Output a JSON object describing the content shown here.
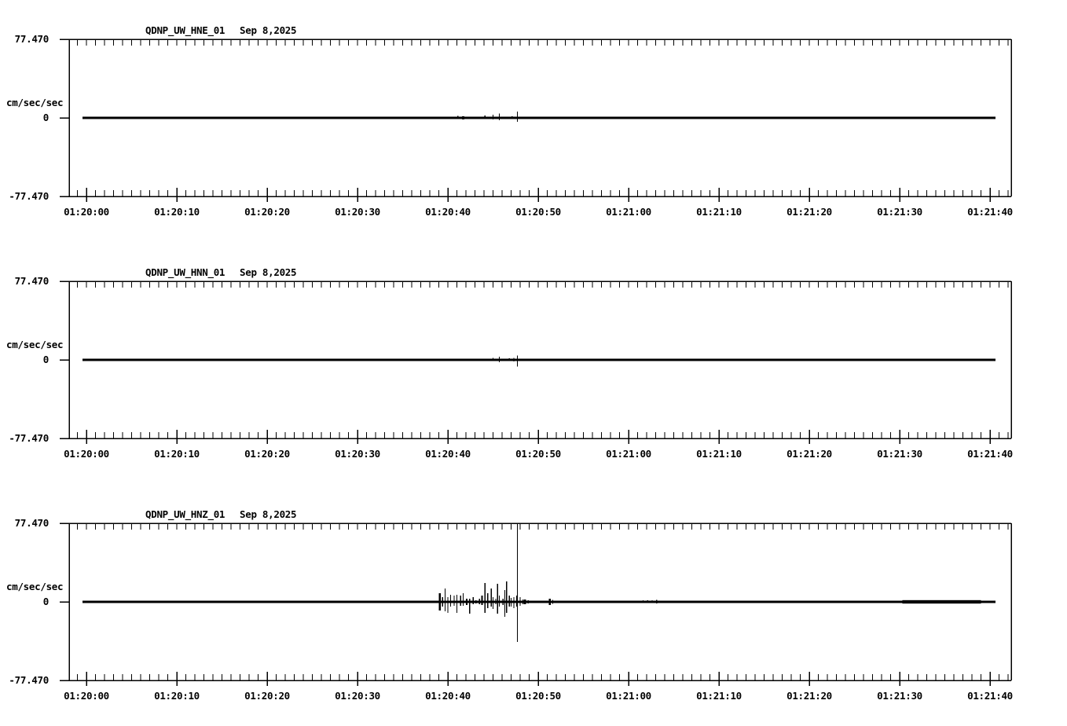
{
  "colors": {
    "background": "#ffffff",
    "ink": "#000000"
  },
  "chart_data": [
    {
      "type": "line",
      "title": "QDNP_UW_HNE_01",
      "date": "Sep 8,2025",
      "ylabel": "cm/sec/sec",
      "y_max_label": "77.470",
      "y_zero_label": "0",
      "y_min_label": "-77.470",
      "ylim": [
        -77.47,
        77.47
      ],
      "x_window": [
        "01:20:00",
        "01:21:40"
      ],
      "xticks": [
        {
          "t": 0,
          "label": "01:20:00"
        },
        {
          "t": 10,
          "label": "01:20:10"
        },
        {
          "t": 20,
          "label": "01:20:20"
        },
        {
          "t": 30,
          "label": "01:20:30"
        },
        {
          "t": 40,
          "label": "01:20:40"
        },
        {
          "t": 50,
          "label": "01:20:50"
        },
        {
          "t": 60,
          "label": "01:21:00"
        },
        {
          "t": 70,
          "label": "01:21:10"
        },
        {
          "t": 80,
          "label": "01:21:20"
        },
        {
          "t": 90,
          "label": "01:21:30"
        },
        {
          "t": 100,
          "label": "01:21:40"
        }
      ],
      "spikes": [
        [
          39.6,
          1.2,
          0.8
        ],
        [
          41.1,
          1.9,
          1.2
        ],
        [
          41.7,
          1.6,
          1.6,
          3
        ],
        [
          42.0,
          0.8,
          0.8
        ],
        [
          44.1,
          2.3,
          1.2
        ],
        [
          44.4,
          1.2,
          0.8
        ],
        [
          45.0,
          3.1,
          1.6
        ],
        [
          45.7,
          4.3,
          2.3
        ],
        [
          46.3,
          1.2,
          1.2
        ],
        [
          46.8,
          1.2,
          1.2
        ],
        [
          47.1,
          1.6,
          1.2
        ],
        [
          47.7,
          6.2,
          3.9
        ],
        [
          51.3,
          1.2,
          0.8,
          2
        ]
      ],
      "bands": []
    },
    {
      "type": "line",
      "title": "QDNP_UW_HNN_01",
      "date": "Sep 8,2025",
      "ylabel": "cm/sec/sec",
      "y_max_label": "77.470",
      "y_zero_label": "0",
      "y_min_label": "-77.470",
      "ylim": [
        -77.47,
        77.47
      ],
      "x_window": [
        "01:20:00",
        "01:21:40"
      ],
      "xticks": [
        {
          "t": 0,
          "label": "01:20:00"
        },
        {
          "t": 10,
          "label": "01:20:10"
        },
        {
          "t": 20,
          "label": "01:20:20"
        },
        {
          "t": 30,
          "label": "01:20:30"
        },
        {
          "t": 40,
          "label": "01:20:40"
        },
        {
          "t": 50,
          "label": "01:20:50"
        },
        {
          "t": 60,
          "label": "01:21:00"
        },
        {
          "t": 70,
          "label": "01:21:10"
        },
        {
          "t": 80,
          "label": "01:21:20"
        },
        {
          "t": 90,
          "label": "01:21:30"
        },
        {
          "t": 100,
          "label": "01:21:40"
        }
      ],
      "spikes": [
        [
          39.6,
          0.8,
          0.8
        ],
        [
          41.1,
          1.2,
          0.8
        ],
        [
          41.7,
          1.2,
          1.2
        ],
        [
          44.3,
          0.8,
          0.8
        ],
        [
          45.0,
          1.9,
          1.2
        ],
        [
          45.7,
          3.1,
          2.3
        ],
        [
          46.3,
          0.8,
          0.8
        ],
        [
          46.8,
          1.6,
          1.2
        ],
        [
          47.3,
          1.9,
          1.6
        ],
        [
          47.7,
          4.3,
          6.6
        ]
      ],
      "bands": []
    },
    {
      "type": "line",
      "title": "QDNP_UW_HNZ_01",
      "date": "Sep 8,2025",
      "ylabel": "cm/sec/sec",
      "y_max_label": "77.470",
      "y_zero_label": "0",
      "y_min_label": "-77.470",
      "ylim": [
        -77.47,
        77.47
      ],
      "x_window": [
        "01:20:00",
        "01:21:40"
      ],
      "xticks": [
        {
          "t": 0,
          "label": "01:20:00"
        },
        {
          "t": 10,
          "label": "01:20:10"
        },
        {
          "t": 20,
          "label": "01:20:20"
        },
        {
          "t": 30,
          "label": "01:20:30"
        },
        {
          "t": 40,
          "label": "01:20:40"
        },
        {
          "t": 50,
          "label": "01:20:50"
        },
        {
          "t": 60,
          "label": "01:21:00"
        },
        {
          "t": 70,
          "label": "01:21:10"
        },
        {
          "t": 80,
          "label": "01:21:20"
        },
        {
          "t": 90,
          "label": "01:21:30"
        },
        {
          "t": 100,
          "label": "01:21:40"
        }
      ],
      "spikes": [
        [
          39.1,
          8.5,
          8.5,
          2.5
        ],
        [
          39.4,
          4.7,
          4.7
        ],
        [
          39.7,
          13.2,
          9.3
        ],
        [
          40.0,
          4.7,
          10.9
        ],
        [
          40.3,
          7.0,
          4.7
        ],
        [
          40.7,
          6.2,
          3.9
        ],
        [
          41.0,
          7.0,
          10.9
        ],
        [
          41.4,
          6.2,
          3.9
        ],
        [
          41.7,
          8.5,
          3.9
        ],
        [
          42.1,
          3.1,
          3.1,
          2
        ],
        [
          42.4,
          3.1,
          11.6
        ],
        [
          42.8,
          4.7,
          2.3
        ],
        [
          43.1,
          1.6,
          1.6
        ],
        [
          43.5,
          3.1,
          2.3
        ],
        [
          43.8,
          6.2,
          3.1,
          2
        ],
        [
          44.1,
          18.6,
          10.9
        ],
        [
          44.4,
          8.5,
          6.2
        ],
        [
          44.8,
          13.2,
          4.7
        ],
        [
          45.0,
          4.7,
          7.0
        ],
        [
          45.3,
          3.1,
          2.3
        ],
        [
          45.5,
          17.8,
          11.6
        ],
        [
          45.7,
          6.2,
          4.7
        ],
        [
          46.1,
          3.1,
          3.1
        ],
        [
          46.3,
          11.6,
          14.7
        ],
        [
          46.5,
          20.2,
          10.9
        ],
        [
          46.8,
          6.2,
          4.7
        ],
        [
          47.0,
          3.9,
          4.7
        ],
        [
          47.3,
          4.7,
          6.2
        ],
        [
          47.6,
          6.2,
          4.7
        ],
        [
          47.7,
          77.4,
          39.5
        ],
        [
          48.0,
          4.7,
          3.9
        ],
        [
          48.3,
          2.3,
          2.3
        ],
        [
          48.5,
          2.3,
          2.3,
          3
        ],
        [
          48.9,
          1.6,
          1.6
        ],
        [
          49.6,
          1.2,
          1.2
        ],
        [
          51.3,
          3.1,
          3.1,
          2.5
        ],
        [
          51.6,
          1.9,
          1.9
        ],
        [
          61.0,
          1.2,
          1.2
        ],
        [
          61.6,
          1.6,
          1.2
        ],
        [
          62.1,
          1.6,
          1.2
        ],
        [
          62.6,
          1.6,
          1.2
        ],
        [
          63.1,
          1.9,
          1.6
        ],
        [
          63.7,
          1.2,
          0.8
        ],
        [
          64.8,
          0.8,
          0.8
        ],
        [
          66.1,
          0.8,
          0.8
        ],
        [
          66.8,
          0.8,
          0.8
        ],
        [
          67.2,
          1.2,
          1.2
        ]
      ],
      "bands": [
        [
          90.3,
          99.0,
          1.3
        ]
      ]
    }
  ]
}
